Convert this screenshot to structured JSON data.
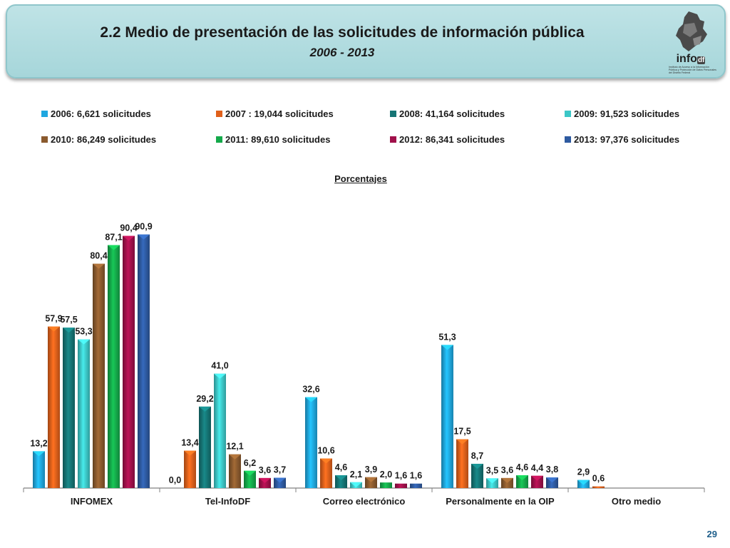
{
  "header": {
    "title": "2.2 Medio de presentación de las solicitudes de información pública",
    "subtitle": "2006 - 2013"
  },
  "logo": {
    "word": "info",
    "suffix": "df",
    "tagline": "Instituto de Acceso a la Información Pública y Protección de Datos Personales del Distrito Federal"
  },
  "colors": {
    "banner": "#a6d6da",
    "series": [
      "#1fa7e0",
      "#e0601b",
      "#157474",
      "#3cc7c7",
      "#8a5a2e",
      "#14a94a",
      "#a0104a",
      "#2e5aa0"
    ]
  },
  "chart_data": {
    "type": "bar",
    "title": "Porcentajes",
    "categories": [
      "INFOMEX",
      "Tel-InfoDF",
      "Correo electrónico",
      "Personalmente en la OIP",
      "Otro medio"
    ],
    "ylim": [
      0,
      100
    ],
    "grid": false,
    "legend_position": "top",
    "series": [
      {
        "name": "2006: 6,621 solicitudes",
        "values": [
          13.2,
          0.0,
          32.6,
          51.3,
          2.9
        ],
        "labels": [
          "13,2",
          "0,0",
          "32,6",
          "51,3",
          "2,9"
        ]
      },
      {
        "name": "2007 : 19,044 solicitudes",
        "values": [
          57.9,
          13.4,
          10.6,
          17.5,
          0.6
        ],
        "labels": [
          "57,9",
          "13,4",
          "10,6",
          "17,5",
          "0,6"
        ]
      },
      {
        "name": "2008: 41,164 solicitudes",
        "values": [
          57.5,
          29.2,
          4.6,
          8.7,
          null
        ],
        "labels": [
          "57,5",
          "29,2",
          "4,6",
          "8,7",
          null
        ]
      },
      {
        "name": "2009: 91,523 solicitudes",
        "values": [
          53.3,
          41.0,
          2.1,
          3.5,
          null
        ],
        "labels": [
          "53,3",
          "41,0",
          "2,1",
          "3,5",
          null
        ]
      },
      {
        "name": "2010: 86,249 solicitudes",
        "values": [
          80.4,
          12.1,
          3.9,
          3.6,
          null
        ],
        "labels": [
          "80,4",
          "12,1",
          "3,9",
          "3,6",
          null
        ]
      },
      {
        "name": "2011: 89,610 solicitudes",
        "values": [
          87.1,
          6.2,
          2.0,
          4.6,
          null
        ],
        "labels": [
          "87,1",
          "6,2",
          "2,0",
          "4,6",
          null
        ]
      },
      {
        "name": "2012: 86,341 solicitudes",
        "values": [
          90.4,
          3.6,
          1.6,
          4.4,
          null
        ],
        "labels": [
          "90,4",
          "3,6",
          "1,6",
          "4,4",
          null
        ]
      },
      {
        "name": "2013: 97,376 solicitudes",
        "values": [
          90.9,
          3.7,
          1.6,
          3.8,
          null
        ],
        "labels": [
          "90,9",
          "3,7",
          "1,6",
          "3,8",
          null
        ]
      }
    ]
  },
  "footer": {
    "page_number": "29"
  }
}
